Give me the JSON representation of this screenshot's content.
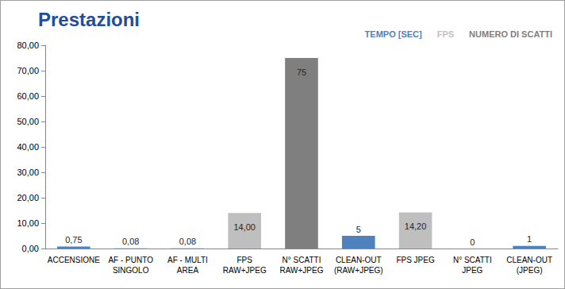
{
  "chart_data": {
    "type": "bar",
    "title": "Prestazioni",
    "categories": [
      "ACCENSIONE",
      "AF - PUNTO\nSINGOLO",
      "AF - MULTI\nAREA",
      "FPS\nRAW+JPEG",
      "N° SCATTI\nRAW+JPEG",
      "CLEAN-OUT\n(RAW+JPEG)",
      "FPS JPEG",
      "N° SCATTI\nJPEG",
      "CLEAN-OUT\n(JPEG)"
    ],
    "series": [
      {
        "name": "TEMPO [SEC]",
        "color": "#4f81bd",
        "values": [
          0.75,
          0.08,
          0.08,
          null,
          null,
          5,
          null,
          null,
          1
        ],
        "value_labels": [
          "0,75",
          "0,08",
          "0,08",
          null,
          null,
          "5",
          null,
          null,
          "1"
        ]
      },
      {
        "name": "FPS",
        "color": "#bfbfbf",
        "values": [
          null,
          null,
          null,
          14,
          null,
          null,
          14.2,
          null,
          null
        ],
        "value_labels": [
          null,
          null,
          null,
          "14,00",
          null,
          null,
          "14,20",
          null,
          null
        ]
      },
      {
        "name": "NUMERO DI SCATTI",
        "color": "#7f7f7f",
        "values": [
          null,
          null,
          null,
          null,
          75,
          null,
          null,
          0,
          null
        ],
        "value_labels": [
          null,
          null,
          null,
          null,
          "75",
          null,
          null,
          "0",
          null
        ]
      }
    ],
    "ylim": [
      0,
      80
    ],
    "yticks": [
      {
        "value": 0,
        "label": "0,00"
      },
      {
        "value": 10,
        "label": "10,00"
      },
      {
        "value": 20,
        "label": "20,00"
      },
      {
        "value": 30,
        "label": "30,00"
      },
      {
        "value": 40,
        "label": "40,00"
      },
      {
        "value": 50,
        "label": "50,00"
      },
      {
        "value": 60,
        "label": "60,00"
      },
      {
        "value": 70,
        "label": "70,00"
      },
      {
        "value": 80,
        "label": "80,00"
      }
    ],
    "grid": false,
    "legend": "top-right",
    "data_labels": true
  }
}
